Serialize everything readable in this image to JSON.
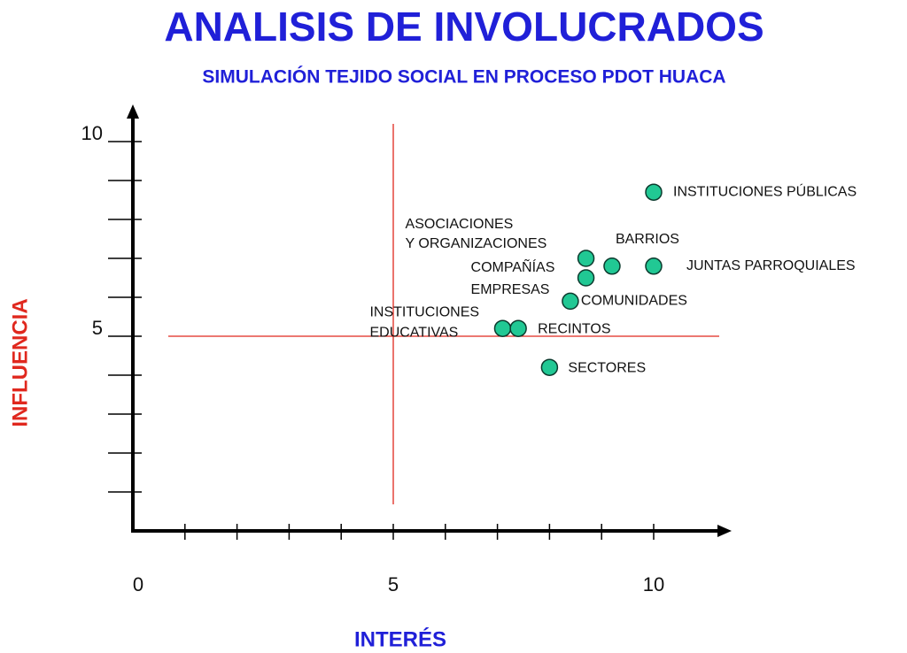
{
  "chart_data": {
    "type": "scatter",
    "title": "ANALISIS DE INVOLUCRADOS",
    "subtitle": "SIMULACIÓN TEJIDO SOCIAL EN PROCESO PDOT HUACA",
    "x_label": "INTERÉS",
    "y_label": "INFLUENCIA",
    "xlim": [
      0,
      10
    ],
    "ylim": [
      0,
      10
    ],
    "xticks": [
      0,
      5,
      10
    ],
    "yticks": [
      5,
      10
    ],
    "x_minor_ticks": [
      1,
      2,
      3,
      4,
      6,
      7,
      8,
      9
    ],
    "y_minor_ticks": [
      1,
      2,
      3,
      4,
      6,
      7,
      8,
      9
    ],
    "quadrant_lines": {
      "x": 5,
      "y": 5,
      "color": "#e0281e"
    },
    "color": "#21c894",
    "points": [
      {
        "label": [
          "INSTITUCIONES PÚBLICAS"
        ],
        "x": 10,
        "y": 8.7
      },
      {
        "label": [
          "BARRIOS"
        ],
        "x": 9.2,
        "y": 6.8
      },
      {
        "label": [
          "JUNTAS PARROQUIALES"
        ],
        "x": 10,
        "y": 6.8
      },
      {
        "label": [
          "ASOCIACIONES",
          "Y ORGANIZACIONES"
        ],
        "x": 8.7,
        "y": 7.0
      },
      {
        "label": [
          "COMPAÑÍAS",
          "EMPRESAS"
        ],
        "x": 8.7,
        "y": 6.5
      },
      {
        "label": [
          "COMUNIDADES"
        ],
        "x": 8.4,
        "y": 5.9
      },
      {
        "label": [
          "INSTITUCIONES",
          "EDUCATIVAS"
        ],
        "x": 7.1,
        "y": 5.2
      },
      {
        "label": [
          "RECINTOS"
        ],
        "x": 7.4,
        "y": 5.2
      },
      {
        "label": [
          "SECTORES"
        ],
        "x": 8.0,
        "y": 4.2
      }
    ]
  }
}
